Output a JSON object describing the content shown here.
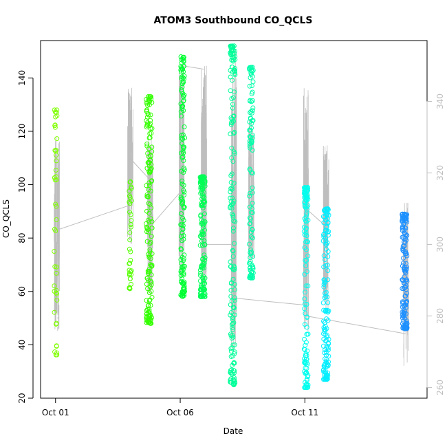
{
  "chart_data": {
    "type": "scatter",
    "title": "ATOM3 Southbound CO_QCLS",
    "xlabel": "Date",
    "ylabel": "CO_QCLS",
    "x_ticks": [
      "Oct 01",
      "Oct 06",
      "Oct 11"
    ],
    "x_tick_days": [
      1,
      6,
      11
    ],
    "xlim_days": [
      0.4,
      15.9
    ],
    "y_ticks": [
      20,
      40,
      60,
      80,
      100,
      120,
      140
    ],
    "ylim": [
      20,
      154
    ],
    "y2_ticks": [
      260,
      280,
      300,
      320,
      340
    ],
    "y2lim": [
      257,
      357
    ],
    "grid": false,
    "legend": "none",
    "colors": {
      "primary_line": "#bebebe",
      "right_axis": "#bebebe",
      "point_scale": [
        "#7FFF00",
        "#00FF40",
        "#00FFAA",
        "#00FFFF",
        "#1E90FF"
      ]
    },
    "point_clusters": [
      {
        "day": 1.0,
        "spread": 0.06,
        "y_min": 36,
        "y_max": 128,
        "color": "#7FFF00",
        "count": 45
      },
      {
        "day": 4.0,
        "spread": 0.05,
        "y_min": 61,
        "y_max": 102,
        "color": "#55FF00",
        "count": 35
      },
      {
        "day": 4.75,
        "spread": 0.12,
        "y_min": 48,
        "y_max": 133,
        "color": "#33FF00",
        "count": 160
      },
      {
        "day": 6.1,
        "spread": 0.08,
        "y_min": 58,
        "y_max": 148,
        "color": "#00FF33",
        "count": 140
      },
      {
        "day": 6.9,
        "spread": 0.1,
        "y_min": 58,
        "y_max": 103,
        "color": "#00FF55",
        "count": 140
      },
      {
        "day": 8.1,
        "spread": 0.1,
        "y_min": 25,
        "y_max": 152,
        "color": "#00FF99",
        "count": 170
      },
      {
        "day": 8.85,
        "spread": 0.08,
        "y_min": 65,
        "y_max": 144,
        "color": "#00FFAA",
        "count": 110
      },
      {
        "day": 11.05,
        "spread": 0.08,
        "y_min": 24,
        "y_max": 99,
        "color": "#00FFEE",
        "count": 130
      },
      {
        "day": 11.85,
        "spread": 0.11,
        "y_min": 27,
        "y_max": 91,
        "color": "#00EEFF",
        "count": 140
      },
      {
        "day": 15.0,
        "spread": 0.1,
        "y_min": 46,
        "y_max": 89,
        "color": "#1E90FF",
        "count": 150
      }
    ],
    "line_series_y2": {
      "name": "",
      "spikes": [
        {
          "day": 1.05,
          "lo": 275,
          "hi": 330
        },
        {
          "day": 4.0,
          "lo": 300,
          "hi": 345
        },
        {
          "day": 4.8,
          "lo": 285,
          "hi": 330
        },
        {
          "day": 6.05,
          "lo": 290,
          "hi": 350
        },
        {
          "day": 6.95,
          "lo": 285,
          "hi": 350
        },
        {
          "day": 8.15,
          "lo": 270,
          "hi": 355
        },
        {
          "day": 8.85,
          "lo": 295,
          "hi": 335
        },
        {
          "day": 11.05,
          "lo": 275,
          "hi": 345
        },
        {
          "day": 11.85,
          "lo": 280,
          "hi": 328
        },
        {
          "day": 15.05,
          "lo": 265,
          "hi": 312
        }
      ],
      "connectors": [
        [
          [
            1.05,
            304
          ],
          [
            4.0,
            311
          ]
        ],
        [
          [
            4.0,
            324
          ],
          [
            4.8,
            318
          ]
        ],
        [
          [
            4.8,
            305
          ],
          [
            6.05,
            315
          ]
        ],
        [
          [
            6.05,
            350
          ],
          [
            6.95,
            349
          ]
        ],
        [
          [
            6.95,
            300
          ],
          [
            8.15,
            300
          ]
        ],
        [
          [
            8.15,
            285
          ],
          [
            11.05,
            283
          ]
        ],
        [
          [
            11.05,
            280
          ],
          [
            15.05,
            275
          ]
        ],
        [
          [
            11.05,
            310
          ],
          [
            11.85,
            305
          ]
        ]
      ]
    }
  }
}
